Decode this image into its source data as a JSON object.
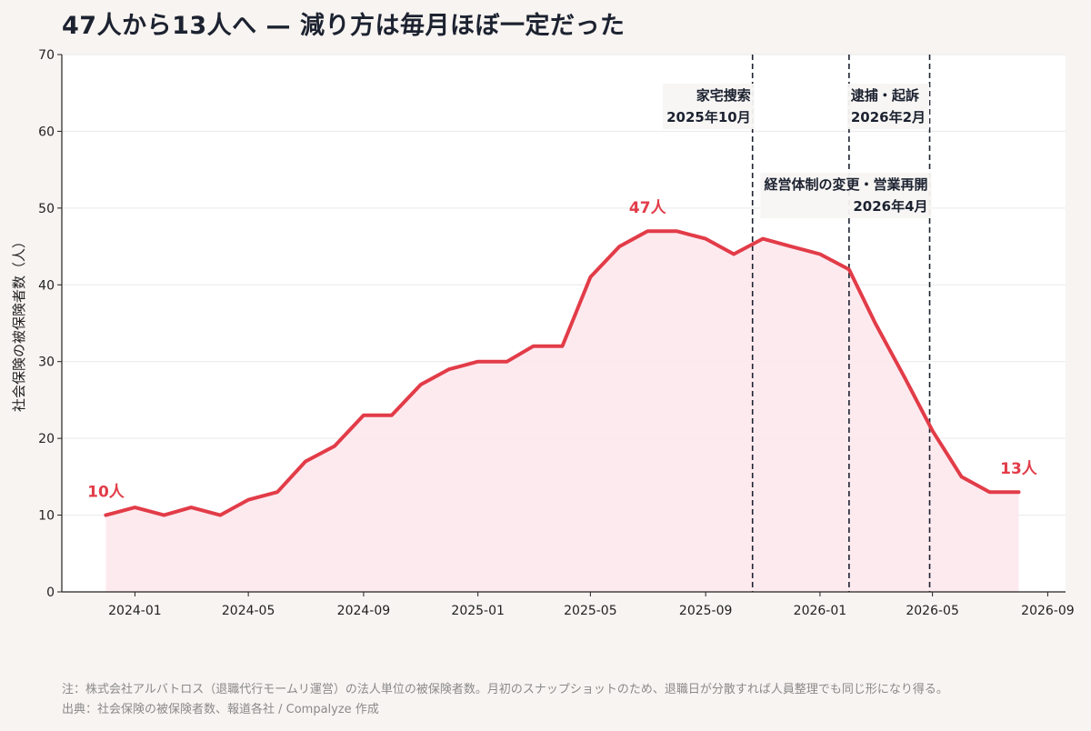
{
  "title": "47人から13人へ — 減り方は毎月ほぼ一定だった",
  "notes": {
    "note": "注：株式会社アルバトロス（退職代行モームリ運営）の法人単位の被保険者数。月初のスナップショットのため、退職日が分散すれば人員整理でも同じ形になり得る。",
    "source": "出典：社会保険の被保険者数、報道各社 / Compalyze 作成"
  },
  "colors": {
    "line": "#e23c48",
    "fill": "#fde6ec",
    "grid": "#e9e9e9",
    "background": "#f8f4f1",
    "plot_background": "#ffffff"
  },
  "chart_data": {
    "type": "area",
    "ylabel": "社会保険の被保険者数（人）",
    "xlabel": "",
    "ylim": [
      0,
      70
    ],
    "yticks": [
      0,
      10,
      20,
      30,
      40,
      50,
      60,
      70
    ],
    "xlim": [
      "2023-10-15",
      "2026-09-20"
    ],
    "xticks": [
      "2024-01",
      "2024-05",
      "2024-09",
      "2025-01",
      "2025-05",
      "2025-09",
      "2026-01",
      "2026-05",
      "2026-09"
    ],
    "grid": "horizontal",
    "series": [
      {
        "x": [
          "2023-12",
          "2024-01",
          "2024-02",
          "2024-03",
          "2024-04",
          "2024-05",
          "2024-06",
          "2024-07",
          "2024-08",
          "2024-09",
          "2024-10",
          "2024-11",
          "2024-12",
          "2025-01",
          "2025-02",
          "2025-03",
          "2025-04",
          "2025-05",
          "2025-06",
          "2025-07",
          "2025-08",
          "2025-09",
          "2025-10",
          "2025-11",
          "2025-12",
          "2026-01",
          "2026-02",
          "2026-03",
          "2026-04",
          "2026-05",
          "2026-06",
          "2026-07",
          "2026-08"
        ],
        "values": [
          10,
          11,
          10,
          11,
          10,
          12,
          13,
          17,
          19,
          23,
          23,
          27,
          29,
          30,
          30,
          32,
          32,
          41,
          45,
          47,
          47,
          46,
          44,
          46,
          45,
          44,
          42,
          35,
          28,
          21,
          15,
          13,
          13
        ]
      }
    ],
    "point_labels": [
      {
        "x": "2023-12",
        "y": 10,
        "text": "10人"
      },
      {
        "x": "2025-07",
        "y": 47,
        "text": "47人"
      },
      {
        "x": "2026-08",
        "y": 13,
        "text": "13人"
      }
    ],
    "events": [
      {
        "x": "2025-10-21",
        "lines": [
          "家宅捜索",
          "2025年10月"
        ],
        "align": "right",
        "level": "upper"
      },
      {
        "x": "2026-02-01",
        "lines": [
          "逮捕・起訴",
          "2026年2月"
        ],
        "align": "left",
        "level": "upper"
      },
      {
        "x": "2026-04-28",
        "lines": [
          "経営体制の変更・営業再開",
          "2026年4月"
        ],
        "align": "right",
        "level": "lower"
      }
    ]
  }
}
